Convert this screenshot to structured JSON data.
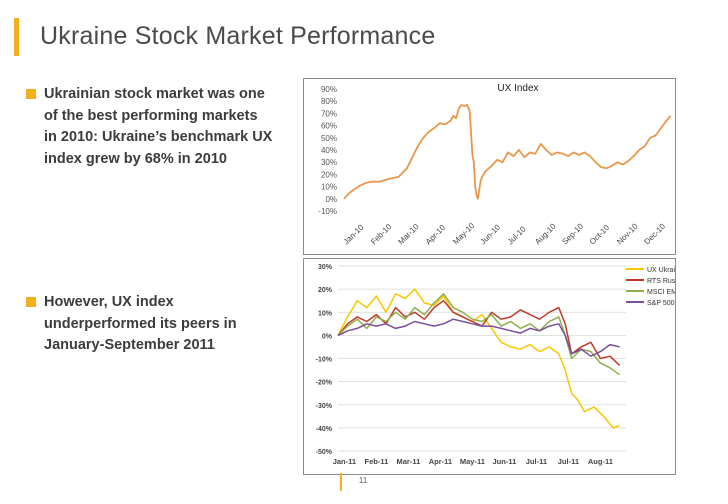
{
  "slide": {
    "title": "Ukraine Stock Market Performance",
    "page_number": "11",
    "accent_color": "#f2b01e"
  },
  "bullets": [
    {
      "text": "Ukrainian stock market was one of the best performing markets in 2010: Ukraine’s benchmark UX index grew by 68% in 2010"
    },
    {
      "text": "However, UX index underperformed its peers in January-September 2011"
    }
  ],
  "chart_data": [
    {
      "type": "line",
      "title": "UX Index",
      "xlabel": "",
      "ylabel": "",
      "ylim": [
        -10,
        90
      ],
      "y_ticks": [
        "-10%",
        "0%",
        "10%",
        "20%",
        "30%",
        "40%",
        "50%",
        "60%",
        "70%",
        "80%",
        "90%"
      ],
      "x_tick_labels": [
        "Jan-10",
        "Feb-10",
        "Mar-10",
        "Apr-10",
        "May-10",
        "Jun-10",
        "Jul-10",
        "Aug-10",
        "Sep-10",
        "Oct-10",
        "Nov-10",
        "Dec-10"
      ],
      "grid": false,
      "series": [
        {
          "color": "#e8974a",
          "x": [
            0,
            0.2,
            0.4,
            0.6,
            0.8,
            1.0,
            1.3,
            1.6,
            2.0,
            2.3,
            2.5,
            2.7,
            2.9,
            3.1,
            3.3,
            3.5,
            3.7,
            3.9,
            4.0,
            4.1,
            4.2,
            4.3,
            4.4,
            4.5,
            4.6,
            4.7,
            4.75,
            4.8,
            4.85,
            4.9,
            5.0,
            5.1,
            5.2,
            5.4,
            5.6,
            5.8,
            6.0,
            6.2,
            6.4,
            6.6,
            6.8,
            7.0,
            7.2,
            7.4,
            7.6,
            7.8,
            8.0,
            8.2,
            8.4,
            8.6,
            8.8,
            9.0,
            9.2,
            9.4,
            9.6,
            9.8,
            10.0,
            10.2,
            10.4,
            10.6,
            10.8,
            11.0,
            11.2,
            11.4,
            11.6,
            11.8,
            11.95
          ],
          "values": [
            0,
            5,
            8,
            11,
            13,
            14,
            14,
            16,
            18,
            25,
            34,
            43,
            50,
            55,
            58,
            62,
            61,
            64,
            68,
            66,
            74,
            77,
            76,
            77,
            72,
            35,
            30,
            10,
            3,
            0,
            15,
            20,
            23,
            27,
            32,
            30,
            38,
            35,
            40,
            34,
            38,
            37,
            45,
            40,
            36,
            38,
            37,
            35,
            38,
            36,
            38,
            35,
            30,
            26,
            25,
            27,
            30,
            28,
            31,
            35,
            40,
            43,
            50,
            52,
            58,
            64,
            68
          ]
        }
      ]
    },
    {
      "type": "line",
      "title": "",
      "xlabel": "",
      "ylabel": "",
      "ylim": [
        -50,
        30
      ],
      "y_ticks": [
        "-50%",
        "-40%",
        "-30%",
        "-20%",
        "-10%",
        "0%",
        "10%",
        "20%",
        "30%"
      ],
      "x_tick_labels": [
        "Jan-11",
        "Feb-11",
        "Mar-11",
        "Apr-11",
        "May-11",
        "Jun-11",
        "Jul-11",
        "Jul-11",
        "Aug-11"
      ],
      "grid": true,
      "legend": "top-right",
      "series": [
        {
          "name": "UX Ukraine",
          "color": "#f5c800",
          "x": [
            0,
            0.3,
            0.6,
            0.9,
            1.2,
            1.5,
            1.8,
            2.1,
            2.4,
            2.7,
            3.0,
            3.3,
            3.6,
            3.9,
            4.2,
            4.5,
            4.8,
            5.1,
            5.4,
            5.7,
            6.0,
            6.3,
            6.6,
            6.9,
            7.1,
            7.3,
            7.5,
            7.7,
            8.0,
            8.3,
            8.6,
            8.8
          ],
          "values": [
            0,
            8,
            15,
            12,
            17,
            10,
            18,
            16,
            20,
            14,
            13,
            17,
            10,
            8,
            6,
            9,
            3,
            -3,
            -5,
            -6,
            -4,
            -7,
            -5,
            -8,
            -15,
            -25,
            -28,
            -33,
            -31,
            -35,
            -40,
            -39
          ]
        },
        {
          "name": "RTS Russia",
          "color": "#c0392b",
          "x": [
            0,
            0.3,
            0.6,
            0.9,
            1.2,
            1.5,
            1.8,
            2.1,
            2.4,
            2.7,
            3.0,
            3.3,
            3.6,
            3.9,
            4.2,
            4.5,
            4.8,
            5.1,
            5.4,
            5.7,
            6.0,
            6.3,
            6.6,
            6.9,
            7.1,
            7.3,
            7.6,
            7.9,
            8.2,
            8.5,
            8.8
          ],
          "values": [
            0,
            5,
            8,
            6,
            9,
            5,
            12,
            8,
            10,
            7,
            12,
            15,
            10,
            8,
            6,
            4,
            10,
            7,
            8,
            11,
            9,
            7,
            10,
            12,
            5,
            -8,
            -5,
            -3,
            -10,
            -9,
            -13
          ]
        },
        {
          "name": "MSCI EM EE",
          "color": "#8db04a",
          "x": [
            0,
            0.3,
            0.6,
            0.9,
            1.2,
            1.5,
            1.8,
            2.1,
            2.4,
            2.7,
            3.0,
            3.3,
            3.6,
            3.9,
            4.2,
            4.5,
            4.8,
            5.1,
            5.4,
            5.7,
            6.0,
            6.3,
            6.6,
            6.9,
            7.1,
            7.3,
            7.6,
            7.9,
            8.2,
            8.5,
            8.8
          ],
          "values": [
            0,
            4,
            7,
            3,
            8,
            6,
            10,
            7,
            12,
            9,
            14,
            18,
            12,
            10,
            7,
            6,
            9,
            4,
            6,
            3,
            5,
            2,
            6,
            8,
            0,
            -10,
            -6,
            -7,
            -12,
            -14,
            -17
          ]
        },
        {
          "name": "S&P 500",
          "color": "#7b4f9a",
          "x": [
            0,
            0.3,
            0.6,
            0.9,
            1.2,
            1.5,
            1.8,
            2.1,
            2.4,
            2.7,
            3.0,
            3.3,
            3.6,
            3.9,
            4.2,
            4.5,
            4.8,
            5.1,
            5.4,
            5.7,
            6.0,
            6.3,
            6.6,
            6.9,
            7.1,
            7.3,
            7.6,
            7.9,
            8.2,
            8.5,
            8.8
          ],
          "values": [
            0,
            2,
            3,
            5,
            4,
            5,
            3,
            4,
            6,
            5,
            4,
            5,
            7,
            6,
            5,
            4,
            4,
            3,
            2,
            1,
            3,
            2,
            4,
            5,
            0,
            -8,
            -6,
            -9,
            -7,
            -4,
            -5
          ]
        }
      ]
    }
  ]
}
